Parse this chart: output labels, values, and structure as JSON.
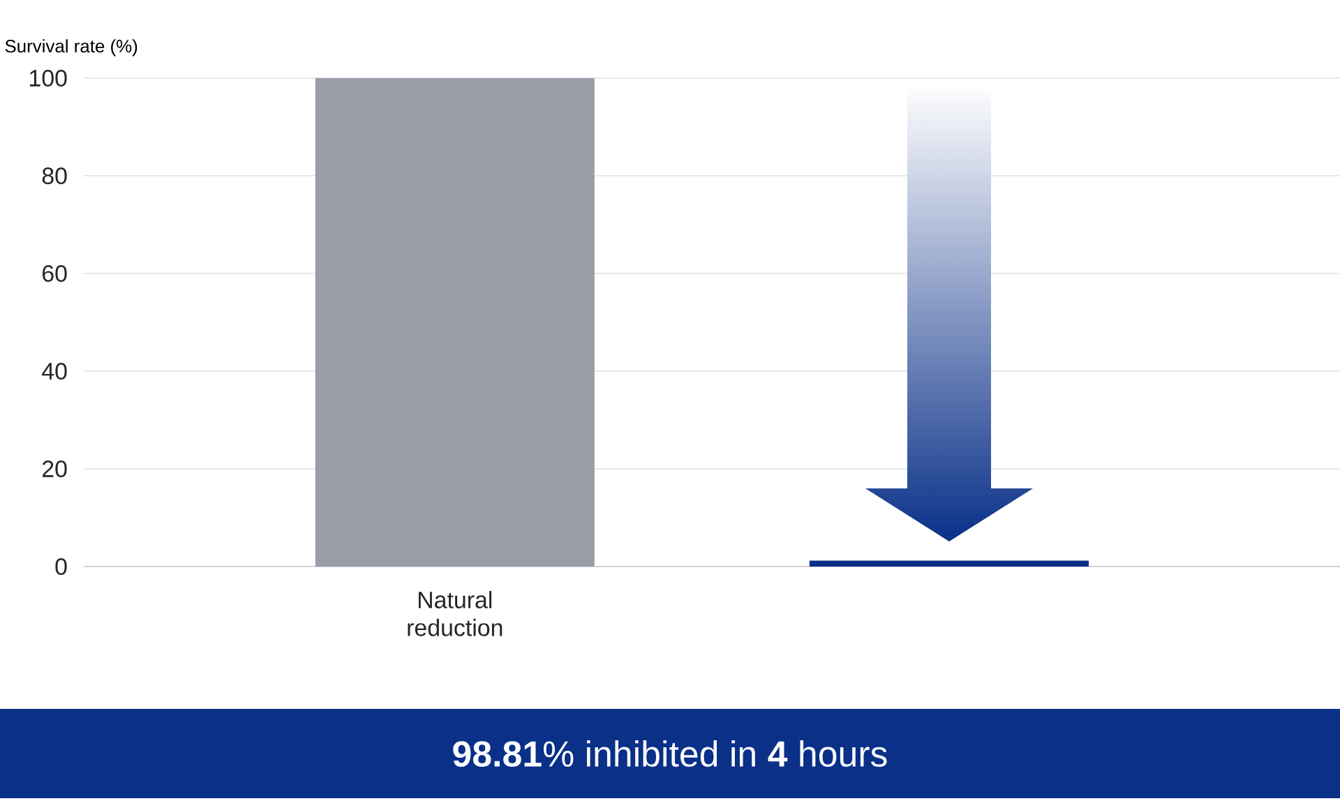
{
  "chart_data": {
    "type": "bar",
    "ylabel": "Survival rate (%)",
    "categories": [
      "Natural reduction",
      null
    ],
    "values": [
      100,
      1.2
    ],
    "colors": [
      "#9a9ea9",
      "#0a3088"
    ],
    "ylim": [
      0,
      100
    ],
    "yticks": [
      0,
      20,
      40,
      60,
      80,
      100
    ],
    "grid": "y",
    "annotations": [
      "**98.81**% inhibited in **4** hours"
    ]
  }
}
